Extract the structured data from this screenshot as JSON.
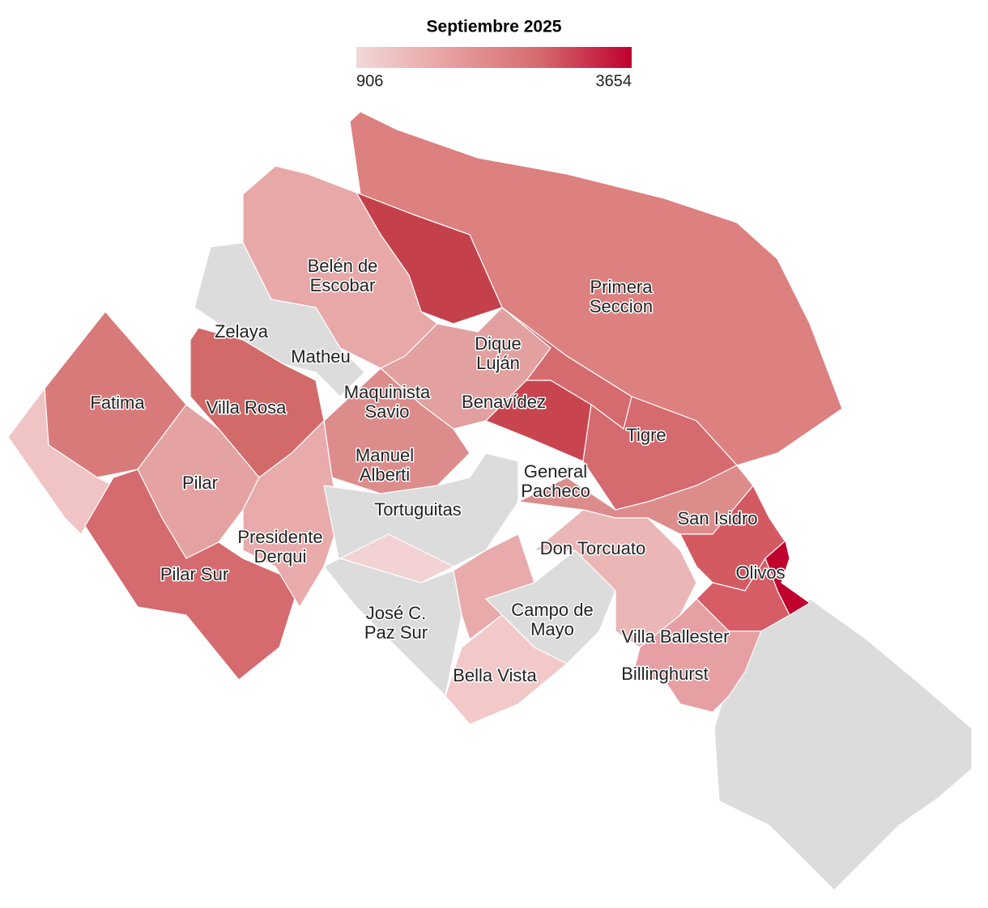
{
  "legend": {
    "title": "Septiembre 2025",
    "min": 906,
    "max": 3654,
    "colors": [
      "#f2d8d8",
      "#e8a0a0",
      "#d56a6f",
      "#c0002e"
    ]
  },
  "labels": [
    {
      "lines": [
        "Primera",
        "Seccion"
      ]
    },
    {
      "lines": [
        "Belén de",
        "Escobar"
      ]
    },
    {
      "lines": [
        "Zelaya"
      ]
    },
    {
      "lines": [
        "Matheu"
      ]
    },
    {
      "lines": [
        "Dique",
        "Luján"
      ]
    },
    {
      "lines": [
        "Fatima"
      ]
    },
    {
      "lines": [
        "Maquinista",
        "Savio"
      ]
    },
    {
      "lines": [
        "Benavídez"
      ]
    },
    {
      "lines": [
        "Villa Rosa"
      ]
    },
    {
      "lines": [
        "Tigre"
      ]
    },
    {
      "lines": [
        "Manuel",
        "Alberti"
      ]
    },
    {
      "lines": [
        "General",
        "Pacheco"
      ]
    },
    {
      "lines": [
        "Pilar"
      ]
    },
    {
      "lines": [
        "Tortuguitas"
      ]
    },
    {
      "lines": [
        "San Isidro"
      ]
    },
    {
      "lines": [
        "Presidente",
        "Derqui"
      ]
    },
    {
      "lines": [
        "Don Torcuato"
      ]
    },
    {
      "lines": [
        "Pilar Sur"
      ]
    },
    {
      "lines": [
        "Olivos"
      ]
    },
    {
      "lines": [
        "José C.",
        "Paz Sur"
      ]
    },
    {
      "lines": [
        "Campo de",
        "Mayo"
      ]
    },
    {
      "lines": [
        "Villa Ballester"
      ]
    },
    {
      "lines": [
        "Bella Vista"
      ]
    },
    {
      "lines": [
        "Billinghurst"
      ]
    }
  ]
}
